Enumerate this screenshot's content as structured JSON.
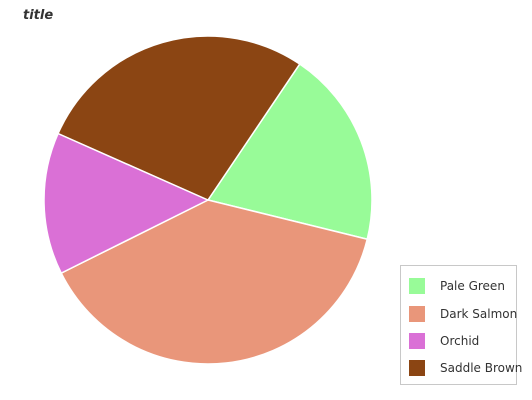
{
  "chart_data": {
    "type": "pie",
    "title": "title",
    "categories": [
      "Pale Green",
      "Dark Salmon",
      "Orchid",
      "Saddle Brown"
    ],
    "values": [
      19.4,
      38.8,
      14.0,
      27.8
    ],
    "colors": [
      "#98fb98",
      "#e9967a",
      "#da70d6",
      "#8b4513"
    ],
    "legend_position": "bottom-right"
  }
}
